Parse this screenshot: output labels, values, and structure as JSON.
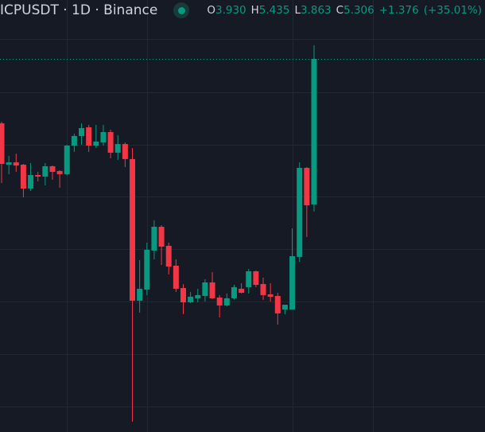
{
  "header": {
    "symbol": "ICPUSDT · 1D · Binance",
    "status_icon": "market-open-dot",
    "open_label": "O",
    "open": "3.930",
    "high_label": "H",
    "high": "5.435",
    "low_label": "L",
    "low": "3.863",
    "close_label": "C",
    "close": "5.306",
    "change": "+1.376",
    "change_pct": "(+35.01%)"
  },
  "colors": {
    "background": "#161a25",
    "up": "#089981",
    "down": "#f23645",
    "grid": "#232733",
    "text": "#d1d4dc"
  },
  "chart_data": {
    "type": "candlestick",
    "grid": true,
    "last_price_line": 5.306,
    "candles": [
      [
        4.697,
        4.712,
        4.133,
        4.313
      ],
      [
        4.306,
        4.389,
        4.216,
        4.328
      ],
      [
        4.328,
        4.411,
        4.238,
        4.298
      ],
      [
        4.306,
        4.313,
        3.998,
        4.08
      ],
      [
        4.08,
        4.321,
        4.058,
        4.208
      ],
      [
        4.208,
        4.238,
        4.148,
        4.193
      ],
      [
        4.193,
        4.321,
        4.11,
        4.291
      ],
      [
        4.291,
        4.298,
        4.163,
        4.238
      ],
      [
        4.246,
        4.253,
        4.088,
        4.216
      ],
      [
        4.216,
        4.494,
        4.208,
        4.486
      ],
      [
        4.486,
        4.599,
        4.426,
        4.577
      ],
      [
        4.577,
        4.697,
        4.494,
        4.652
      ],
      [
        4.659,
        4.682,
        4.426,
        4.486
      ],
      [
        4.486,
        4.682,
        4.464,
        4.524
      ],
      [
        4.516,
        4.682,
        4.486,
        4.614
      ],
      [
        4.614,
        4.637,
        4.366,
        4.419
      ],
      [
        4.419,
        4.584,
        4.351,
        4.501
      ],
      [
        4.501,
        4.516,
        4.283,
        4.359
      ],
      [
        4.359,
        4.464,
        1.877,
        3.02
      ],
      [
        3.02,
        3.404,
        2.907,
        3.133
      ],
      [
        3.125,
        3.569,
        3.073,
        3.501
      ],
      [
        3.494,
        3.78,
        3.411,
        3.719
      ],
      [
        3.719,
        3.734,
        3.358,
        3.531
      ],
      [
        3.539,
        3.569,
        3.268,
        3.343
      ],
      [
        3.351,
        3.411,
        3.103,
        3.133
      ],
      [
        3.14,
        3.178,
        2.892,
        3.005
      ],
      [
        3.005,
        3.103,
        2.997,
        3.058
      ],
      [
        3.043,
        3.133,
        3.005,
        3.073
      ],
      [
        3.065,
        3.223,
        3.012,
        3.193
      ],
      [
        3.193,
        3.291,
        3.035,
        3.043
      ],
      [
        3.05,
        3.073,
        2.862,
        2.975
      ],
      [
        2.975,
        3.088,
        2.967,
        3.043
      ],
      [
        3.043,
        3.17,
        3.03,
        3.148
      ],
      [
        3.133,
        3.185,
        3.088,
        3.095
      ],
      [
        3.148,
        3.321,
        3.088,
        3.298
      ],
      [
        3.298,
        3.306,
        3.148,
        3.17
      ],
      [
        3.178,
        3.238,
        3.028,
        3.073
      ],
      [
        3.08,
        3.185,
        3.012,
        3.058
      ],
      [
        3.065,
        3.095,
        2.794,
        2.9
      ],
      [
        2.937,
        2.982,
        2.892,
        2.982
      ],
      [
        2.937,
        3.704,
        2.937,
        3.441
      ],
      [
        3.434,
        4.328,
        3.388,
        4.276
      ],
      [
        4.276,
        4.283,
        3.622,
        3.922
      ],
      [
        3.93,
        5.435,
        3.863,
        5.306
      ]
    ],
    "candle_fields": [
      "open",
      "high",
      "low",
      "close"
    ]
  }
}
